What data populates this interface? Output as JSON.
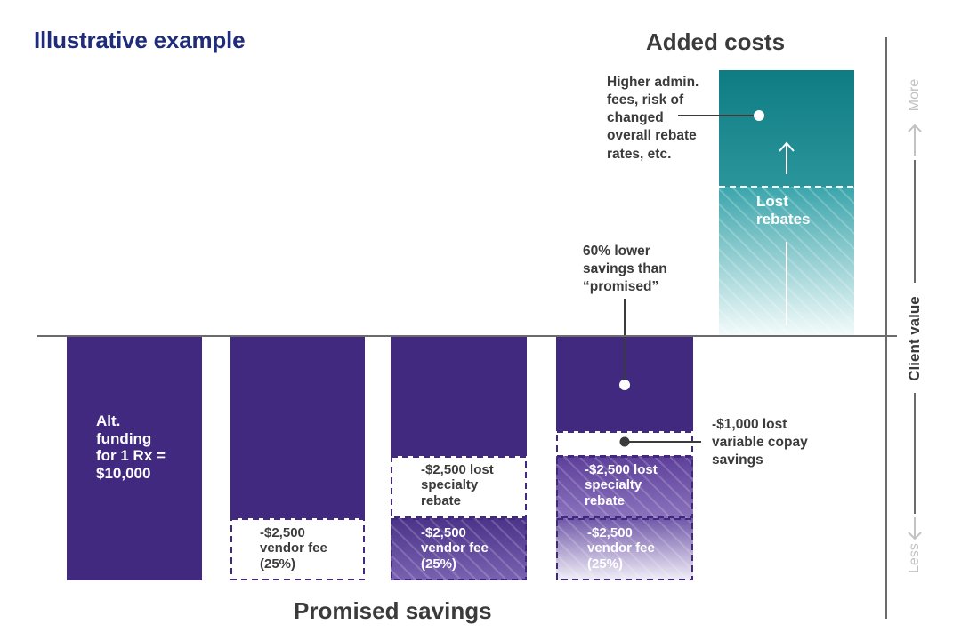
{
  "title": "Illustrative example",
  "sections": {
    "added_costs": "Added costs",
    "promised_savings": "Promised savings"
  },
  "axis": {
    "client_value": "Client value",
    "more": "More",
    "less": "Less"
  },
  "bar1": {
    "lines": [
      "Alt.",
      "funding",
      "for 1 Rx =",
      "$10,000"
    ]
  },
  "fees": {
    "vendor_fee": [
      "-$2,500",
      "vendor fee",
      "(25%)"
    ],
    "specialty_rebate": [
      "-$2,500 lost",
      "specialty",
      "rebate"
    ]
  },
  "annotations": {
    "lower_savings": [
      "60% lower",
      "savings than",
      "“promised”"
    ],
    "copay": [
      "-$1,000 lost",
      "variable copay",
      "savings"
    ],
    "admin": [
      "Higher admin.",
      "fees, risk of",
      "changed",
      "overall rebate",
      "rates, etc."
    ],
    "lost_rebates": [
      "Lost",
      "rebates"
    ]
  },
  "colors": {
    "purple": "#41297f",
    "teal": "#0f7b82",
    "title_blue": "#1f2c7a",
    "text": "#3b3b3b",
    "axis_gray": "#6b6b6b",
    "light_gray": "#c2c2c2"
  }
}
